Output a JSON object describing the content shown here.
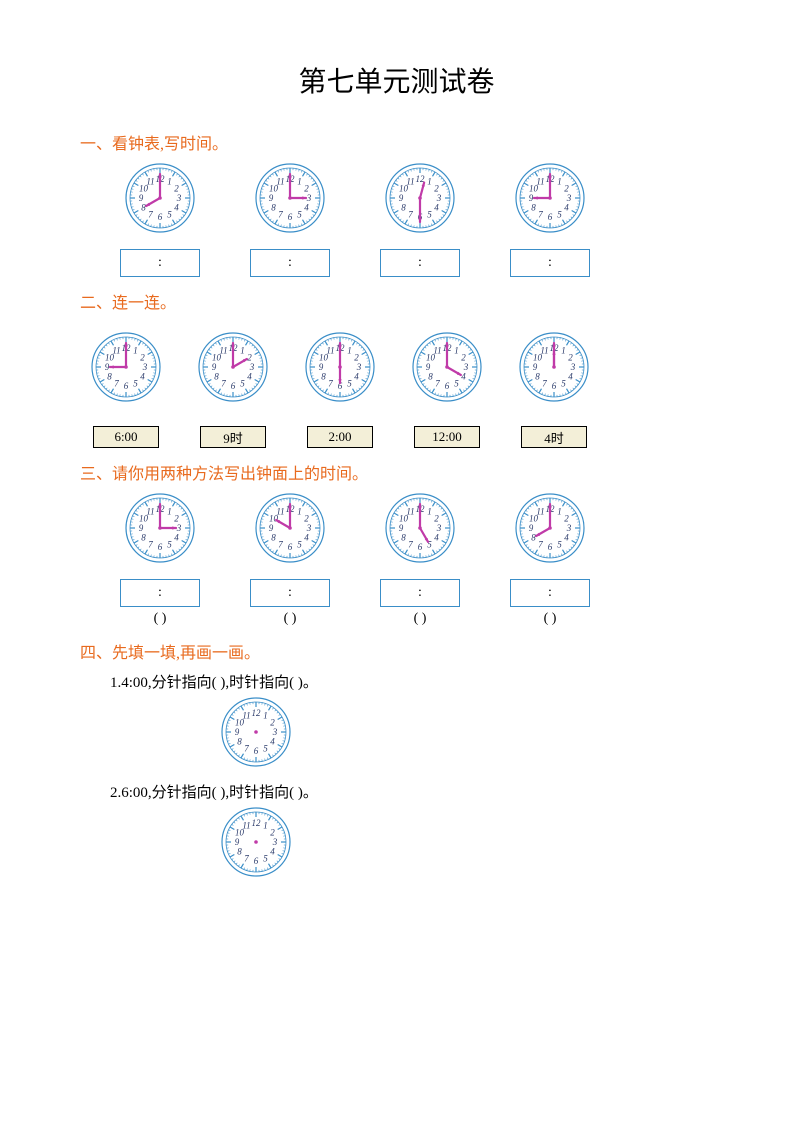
{
  "title": "第七单元测试卷",
  "sections": {
    "s1": {
      "heading": "一、看钟表,写时间。",
      "clocks": [
        {
          "hour": 8,
          "minute": 0
        },
        {
          "hour": 3,
          "minute": 0
        },
        {
          "hour": 12,
          "minute": 30
        },
        {
          "hour": 9,
          "minute": 0
        }
      ],
      "box_text": ":"
    },
    "s2": {
      "heading": "二、连一连。",
      "clocks": [
        {
          "hour": 9,
          "minute": 0
        },
        {
          "hour": 2,
          "minute": 0
        },
        {
          "hour": 6,
          "minute": 0
        },
        {
          "hour": 4,
          "minute": 0
        },
        {
          "hour": 12,
          "minute": 0
        }
      ],
      "labels": [
        "6:00",
        "9时",
        "2:00",
        "12:00",
        "4时"
      ]
    },
    "s3": {
      "heading": "三、请你用两种方法写出钟面上的时间。",
      "clocks": [
        {
          "hour": 3,
          "minute": 0
        },
        {
          "hour": 10,
          "minute": 0
        },
        {
          "hour": 5,
          "minute": 0
        },
        {
          "hour": 8,
          "minute": 0
        }
      ],
      "box_text": ":",
      "paren": "(           )"
    },
    "s4": {
      "heading": "四、先填一填,再画一画。",
      "q1": "1.4:00,分针指向(        ),时针指向(        )。",
      "q2": "2.6:00,分针指向(        ),时针指向(        )。",
      "clocks": [
        {
          "hour": null,
          "minute": null
        },
        {
          "hour": null,
          "minute": null
        }
      ]
    }
  },
  "clock_style": {
    "radius": 34,
    "face_fill": "#ffffff",
    "rim_color": "#3a8ec8",
    "tick_color": "#3a8ec8",
    "number_color": "#2a3a6a",
    "number_fontsize": 9,
    "hour_hand_color": "#c03aa8",
    "minute_hand_color": "#c03aa8",
    "hour_hand_len": 16,
    "minute_hand_len": 24,
    "hand_width": 2.2,
    "center_dot": "#c03aa8"
  }
}
